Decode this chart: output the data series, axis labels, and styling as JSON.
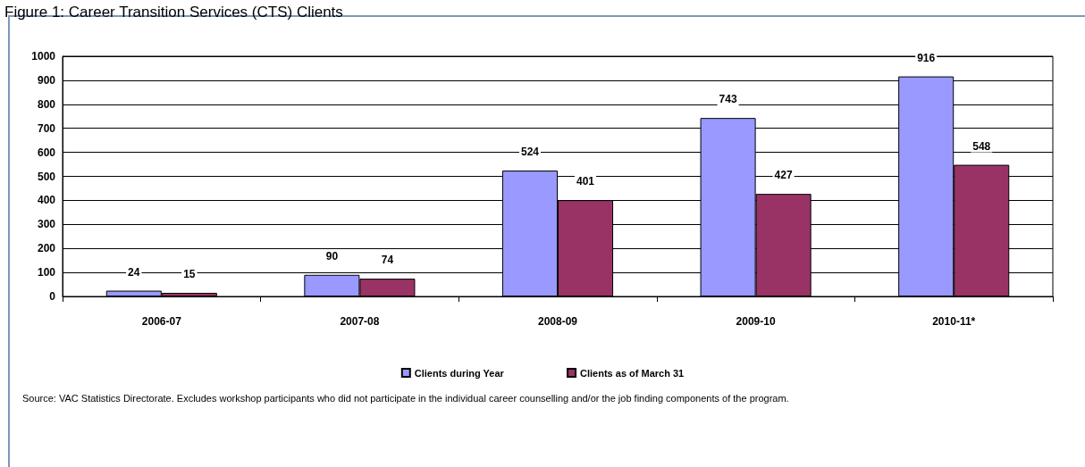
{
  "chart_data": {
    "type": "bar",
    "title": "Figure 1: Career Transition Services (CTS) Clients",
    "categories": [
      "2006-07",
      "2007-08",
      "2008-09",
      "2009-10",
      "2010-11*"
    ],
    "series": [
      {
        "name": "Clients during Year",
        "color": "#9999ff",
        "values": [
          24,
          90,
          524,
          743,
          916
        ]
      },
      {
        "name": "Clients as of March 31",
        "color": "#993366",
        "values": [
          15,
          74,
          401,
          427,
          548
        ]
      }
    ],
    "ylim": [
      0,
      1000
    ],
    "yticks": [
      0,
      100,
      200,
      300,
      400,
      500,
      600,
      700,
      800,
      900,
      1000
    ],
    "grid": "y",
    "legend": "bottom",
    "data_labels": true,
    "annotations": [
      "Source: VAC Statistics Directorate. Excludes workshop participants who did not participate in the individual career counselling and/or the job finding components of the program."
    ]
  }
}
